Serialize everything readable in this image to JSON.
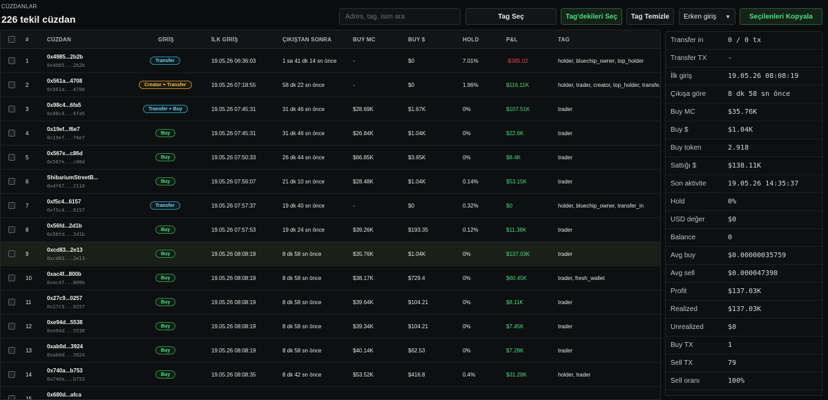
{
  "header": {
    "section_label": "CÜZDANLAR",
    "title": "226 tekil cüzdan",
    "search_placeholder": "Adres, tag, isim ara",
    "btn_tag_select": "Tag Seç",
    "btn_select_tagged": "Tag'dekileri Seç",
    "btn_tag_clear": "Tag Temizle",
    "sort_value": "Erken giriş",
    "btn_copy_selected": "Seçilenleri Kopyala"
  },
  "columns": [
    "#",
    "CÜZDAN",
    "GİRİŞ",
    "İLK GİRİŞ",
    "ÇIKIŞTAN SONRA",
    "BUY MC",
    "BUY $",
    "HOLD",
    "P&L",
    "TAG"
  ],
  "rows": [
    {
      "n": "1",
      "name": "0x4985...2b2b",
      "addr": "0x4985...2b2b",
      "entry": "Transfer",
      "etype": "transfer",
      "first": "19.05.26 06:36:03",
      "after": "1 sa 41 dk 14 sn önce",
      "mc": "-",
      "buy": "$0",
      "hold": "7.01%",
      "pnl": "-$385.02",
      "pnl_sign": "neg",
      "tag": "holder, bluechip_owner, top_holder"
    },
    {
      "n": "2",
      "name": "0x561a...4708",
      "addr": "0x561a...4708",
      "entry": "Creator + Transfer",
      "etype": "creator",
      "first": "19.05.26 07:18:55",
      "after": "58 dk 22 sn önce",
      "mc": "-",
      "buy": "$0",
      "hold": "1.96%",
      "pnl": "$116.11K",
      "pnl_sign": "pos",
      "tag": "holder, trader, creator, top_holder, transfe..."
    },
    {
      "n": "3",
      "name": "0x98c4...6fa5",
      "addr": "0x98c4...6fa5",
      "entry": "Transfer + Buy",
      "etype": "transfer",
      "first": "19.05.26 07:45:31",
      "after": "31 dk 46 sn önce",
      "mc": "$28.69K",
      "buy": "$1.67K",
      "hold": "0%",
      "pnl": "$107.51K",
      "pnl_sign": "pos",
      "tag": "trader"
    },
    {
      "n": "4",
      "name": "0x19ef...f6e7",
      "addr": "0x19ef...f6e7",
      "entry": "Buy",
      "etype": "buy",
      "first": "19.05.26 07:45:31",
      "after": "31 dk 46 sn önce",
      "mc": "$26.84K",
      "buy": "$1.04K",
      "hold": "0%",
      "pnl": "$22.6K",
      "pnl_sign": "pos",
      "tag": "trader"
    },
    {
      "n": "5",
      "name": "0x567e...c86d",
      "addr": "0x567e...c86d",
      "entry": "Buy",
      "etype": "buy",
      "first": "19.05.26 07:50:33",
      "after": "26 dk 44 sn önce",
      "mc": "$66.85K",
      "buy": "$3.65K",
      "hold": "0%",
      "pnl": "$8.4K",
      "pnl_sign": "pos",
      "tag": "trader"
    },
    {
      "n": "6",
      "name": "ShibariumStreetB...",
      "addr": "0x4f67...2110",
      "entry": "Buy",
      "etype": "buy",
      "first": "19.05.26 07:56:07",
      "after": "21 dk 10 sn önce",
      "mc": "$28.48K",
      "buy": "$1.04K",
      "hold": "0.14%",
      "pnl": "$53.15K",
      "pnl_sign": "pos",
      "tag": "trader"
    },
    {
      "n": "7",
      "name": "0xf5c4...6157",
      "addr": "0xf5c4...6157",
      "entry": "Transfer",
      "etype": "transfer",
      "first": "19.05.26 07:57:37",
      "after": "19 dk 40 sn önce",
      "mc": "-",
      "buy": "$0",
      "hold": "0.32%",
      "pnl": "$0",
      "pnl_sign": "pos",
      "tag": "holder, bluechip_owner, transfer_in"
    },
    {
      "n": "8",
      "name": "0x56fd...2d1b",
      "addr": "0x56fd...2d1b",
      "entry": "Buy",
      "etype": "buy",
      "first": "19.05.26 07:57:53",
      "after": "19 dk 24 sn önce",
      "mc": "$39.26K",
      "buy": "$193.35",
      "hold": "0.12%",
      "pnl": "$11.38K",
      "pnl_sign": "pos",
      "tag": "trader"
    },
    {
      "n": "9",
      "name": "0xcd83...2e13",
      "addr": "0xcd83...2e13",
      "entry": "Buy",
      "etype": "buy",
      "first": "19.05.26 08:08:19",
      "after": "8 dk 58 sn önce",
      "mc": "$35.76K",
      "buy": "$1.04K",
      "hold": "0%",
      "pnl": "$137.03K",
      "pnl_sign": "pos",
      "tag": "trader"
    },
    {
      "n": "10",
      "name": "0xac4f...800b",
      "addr": "0xac4f...800b",
      "entry": "Buy",
      "etype": "buy",
      "first": "19.05.26 08:08:19",
      "after": "8 dk 58 sn önce",
      "mc": "$38.17K",
      "buy": "$729.4",
      "hold": "0%",
      "pnl": "$60.45K",
      "pnl_sign": "pos",
      "tag": "trader, fresh_wallet"
    },
    {
      "n": "11",
      "name": "0x27c9...0257",
      "addr": "0x27c9...0257",
      "entry": "Buy",
      "etype": "buy",
      "first": "19.05.26 08:08:19",
      "after": "8 dk 58 sn önce",
      "mc": "$39.64K",
      "buy": "$104.21",
      "hold": "0%",
      "pnl": "$8.11K",
      "pnl_sign": "pos",
      "tag": "trader"
    },
    {
      "n": "12",
      "name": "0xe94d...5538",
      "addr": "0xe94d...5538",
      "entry": "Buy",
      "etype": "buy",
      "first": "19.05.26 08:08:19",
      "after": "8 dk 58 sn önce",
      "mc": "$39.34K",
      "buy": "$104.21",
      "hold": "0%",
      "pnl": "$7.45K",
      "pnl_sign": "pos",
      "tag": "trader"
    },
    {
      "n": "13",
      "name": "0xab0d...3924",
      "addr": "0xab0d...3924",
      "entry": "Buy",
      "etype": "buy",
      "first": "19.05.26 08:08:19",
      "after": "8 dk 58 sn önce",
      "mc": "$40.14K",
      "buy": "$62.53",
      "hold": "0%",
      "pnl": "$7.28K",
      "pnl_sign": "pos",
      "tag": "trader"
    },
    {
      "n": "14",
      "name": "0x740a...b753",
      "addr": "0x740a...b753",
      "entry": "Buy",
      "etype": "buy",
      "first": "19.05.26 08:08:35",
      "after": "8 dk 42 sn önce",
      "mc": "$53.52K",
      "buy": "$416.8",
      "hold": "0.4%",
      "pnl": "$31.28K",
      "pnl_sign": "pos",
      "tag": "holder, trader"
    },
    {
      "n": "15",
      "name": "0x680d...afca",
      "addr": "",
      "entry": "",
      "etype": "buy",
      "first": "",
      "after": "",
      "mc": "",
      "buy": "",
      "hold": "",
      "pnl": "",
      "pnl_sign": "pos",
      "tag": ""
    }
  ],
  "selected_row": 9,
  "details": [
    {
      "k": "Transfer in",
      "v": "0 / 0 tx"
    },
    {
      "k": "Transfer TX",
      "v": "-"
    },
    {
      "k": "İlk giriş",
      "v": "19.05.26 08:08:19"
    },
    {
      "k": "Çıkışa göre",
      "v": "8 dk 58 sn önce"
    },
    {
      "k": "Buy MC",
      "v": "$35.76K"
    },
    {
      "k": "Buy $",
      "v": "$1.04K"
    },
    {
      "k": "Buy token",
      "v": "2.918"
    },
    {
      "k": "Sattığı $",
      "v": "$138.11K"
    },
    {
      "k": "Son aktivite",
      "v": "19.05.26 14:35:37"
    },
    {
      "k": "Hold",
      "v": "0%"
    },
    {
      "k": "USD değer",
      "v": "$0"
    },
    {
      "k": "Balance",
      "v": "0"
    },
    {
      "k": "Avg buy",
      "v": "$0.00000035759"
    },
    {
      "k": "Avg sell",
      "v": "$0.000047398"
    },
    {
      "k": "Profit",
      "v": "$137.03K"
    },
    {
      "k": "Realized",
      "v": "$137.03K"
    },
    {
      "k": "Unrealized",
      "v": "$0"
    },
    {
      "k": "Buy TX",
      "v": "1"
    },
    {
      "k": "Sell TX",
      "v": "79"
    },
    {
      "k": "Sell oranı",
      "v": "100%"
    }
  ]
}
